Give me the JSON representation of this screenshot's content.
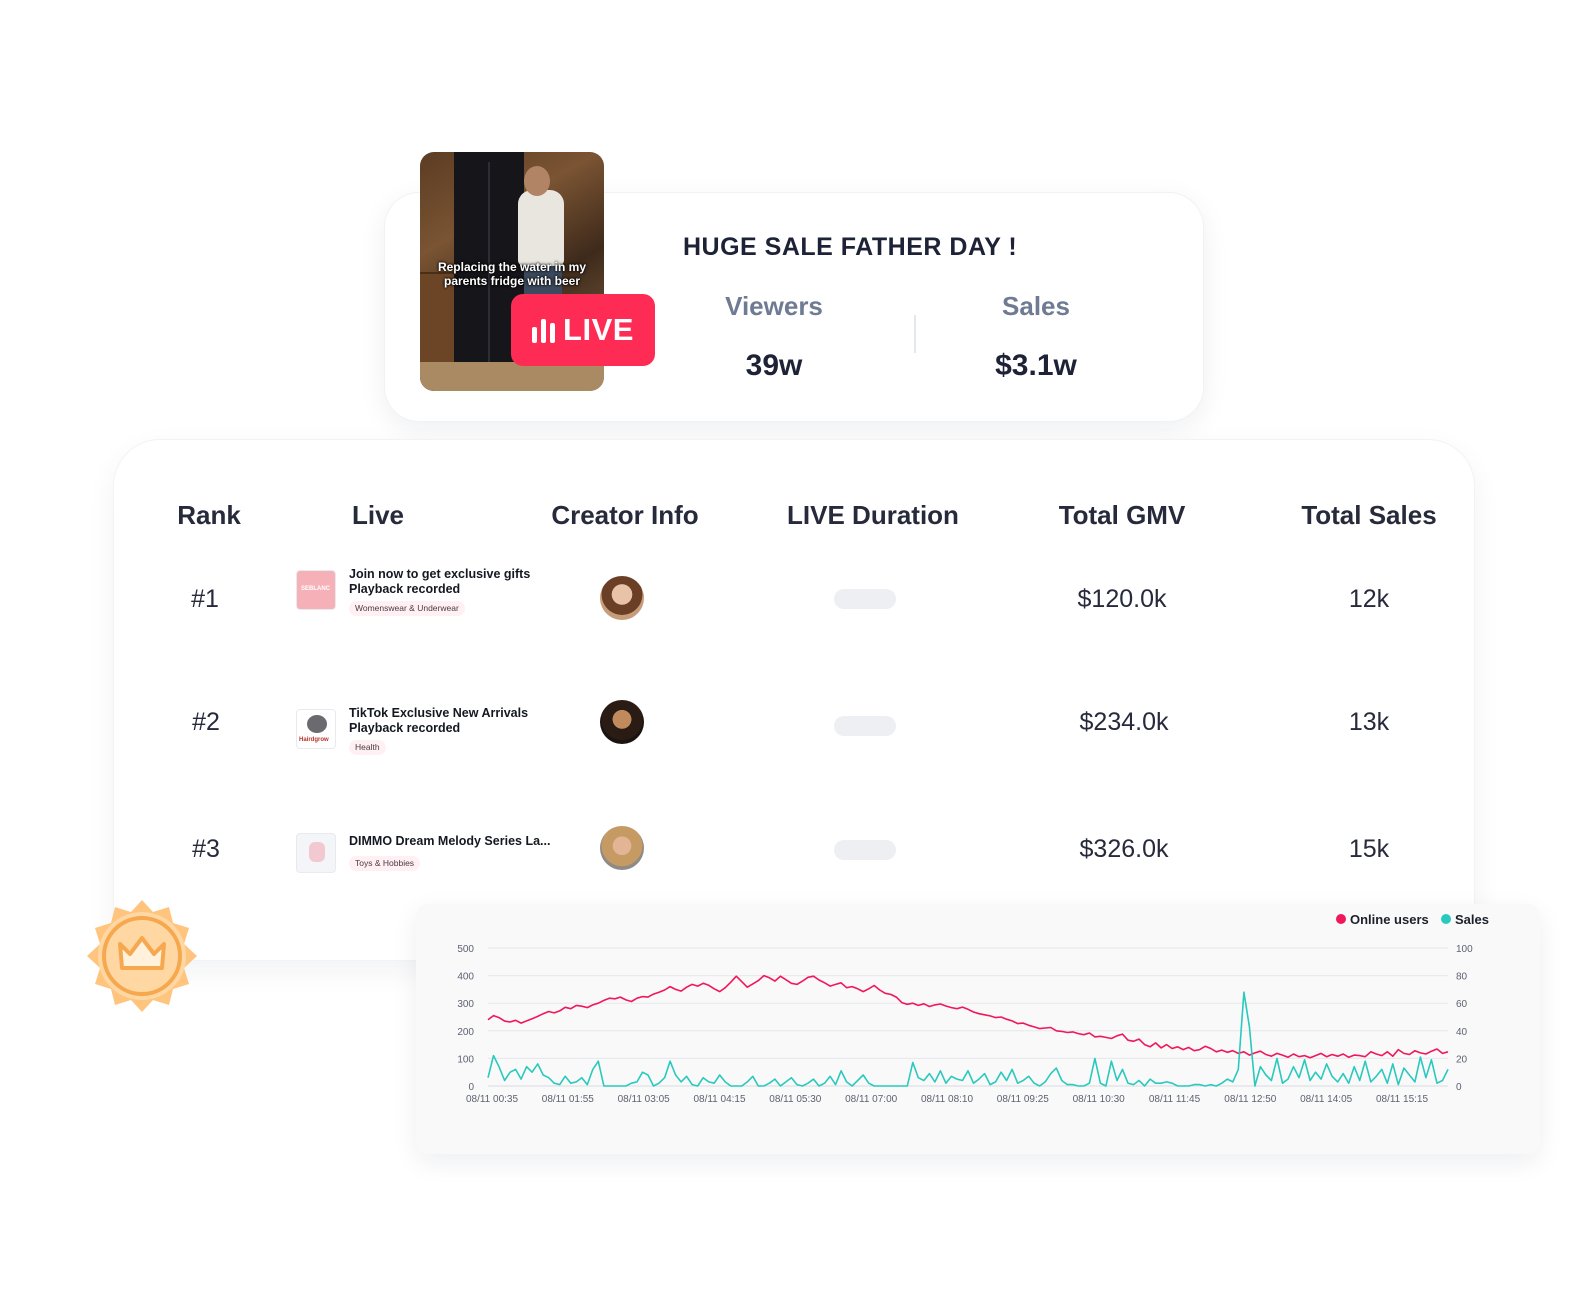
{
  "live_card": {
    "thumbnail_caption": "Replacing the water in my parents fridge with beer",
    "badge_label": "LIVE",
    "title": "HUGE SALE FATHER DAY !",
    "viewers_label": "Viewers",
    "viewers_value": "39w",
    "sales_label": "Sales",
    "sales_value": "$3.1w",
    "brand_color": "#fe2c55"
  },
  "table": {
    "headers": {
      "rank": "Rank",
      "live": "Live",
      "creator": "Creator Info",
      "duration": "LIVE Duration",
      "gmv": "Total GMV",
      "sales": "Total Sales"
    },
    "rows": [
      {
        "rank": "#1",
        "title_line1": "Join now to get exclusive gifts",
        "title_line2": "Playback recorded",
        "category": "Womenswear & Underwear",
        "thumb_text": "SEBLANC",
        "gmv": "$120.0k",
        "sales": "12k"
      },
      {
        "rank": "#2",
        "title_line1": "TikTok Exclusive New Arrivals",
        "title_line2": "Playback recorded",
        "category": "Health",
        "thumb_text": "Hairdgrow",
        "gmv": "$234.0k",
        "sales": "13k"
      },
      {
        "rank": "#3",
        "title_line1": "DIMMO Dream Melody Series La...",
        "title_line2": "",
        "category": "Toys & Hobbies",
        "thumb_text": "",
        "gmv": "$326.0k",
        "sales": "15k"
      }
    ]
  },
  "medal_icon": "crown-badge-icon",
  "chart_data": {
    "type": "line",
    "legend_position": "top-right",
    "grid": true,
    "x_tick_labels": [
      "08/11 00:35",
      "08/11 01:55",
      "08/11 03:05",
      "08/11 04:15",
      "08/11 05:30",
      "08/11 07:00",
      "08/11 08:10",
      "08/11 09:25",
      "08/11 10:30",
      "08/11 11:45",
      "08/11 12:50",
      "08/11 14:05",
      "08/11 15:15"
    ],
    "y_left": {
      "ticks": [
        0,
        100,
        200,
        300,
        400,
        500
      ],
      "range": [
        0,
        500
      ]
    },
    "y_right": {
      "ticks": [
        0,
        20,
        40,
        60,
        80,
        100
      ],
      "range": [
        0,
        100
      ]
    },
    "series": [
      {
        "name": "Online users",
        "axis": "left",
        "color": "#f0175a",
        "values": [
          240,
          255,
          248,
          235,
          232,
          238,
          228,
          236,
          244,
          252,
          262,
          270,
          265,
          272,
          285,
          280,
          292,
          289,
          284,
          294,
          300,
          310,
          318,
          316,
          322,
          312,
          306,
          318,
          324,
          322,
          333,
          340,
          348,
          360,
          350,
          344,
          358,
          368,
          362,
          372,
          365,
          352,
          342,
          356,
          376,
          398,
          378,
          358,
          370,
          382,
          400,
          392,
          380,
          398,
          385,
          372,
          368,
          380,
          394,
          398,
          384,
          374,
          362,
          368,
          374,
          356,
          360,
          352,
          342,
          352,
          364,
          348,
          336,
          332,
          322,
          302,
          296,
          300,
          292,
          298,
          288,
          294,
          297,
          290,
          284,
          280,
          286,
          278,
          268,
          262,
          258,
          254,
          248,
          250,
          242,
          236,
          226,
          228,
          220,
          214,
          208,
          210,
          212,
          200,
          198,
          194,
          196,
          190,
          186,
          192,
          178,
          180,
          176,
          172,
          182,
          188,
          166,
          162,
          170,
          150,
          142,
          156,
          138,
          150,
          136,
          142,
          132,
          140,
          128,
          132,
          144,
          136,
          124,
          130,
          122,
          128,
          118,
          124,
          112,
          120,
          126,
          114,
          108,
          118,
          112,
          104,
          116,
          106,
          110,
          102,
          110,
          118,
          106,
          114,
          108,
          116,
          104,
          112,
          110,
          106,
          124,
          116,
          110,
          124,
          108,
          132,
          118,
          114,
          128,
          120,
          116,
          126,
          134,
          118,
          124
        ]
      },
      {
        "name": "Sales",
        "axis": "right",
        "color": "#2ac9bd",
        "values": [
          6,
          22,
          14,
          4,
          10,
          12,
          5,
          14,
          10,
          16,
          8,
          6,
          2,
          1,
          7,
          2,
          3,
          6,
          1,
          12,
          18,
          0,
          0,
          0,
          0,
          0,
          2,
          3,
          10,
          8,
          0,
          2,
          6,
          18,
          8,
          3,
          7,
          1,
          0,
          6,
          3,
          2,
          8,
          3,
          0,
          0,
          0,
          3,
          7,
          0,
          0,
          2,
          5,
          0,
          3,
          6,
          1,
          0,
          2,
          5,
          0,
          2,
          7,
          1,
          11,
          3,
          0,
          4,
          8,
          2,
          0,
          0,
          0,
          0,
          0,
          0,
          0,
          17,
          6,
          4,
          9,
          3,
          11,
          2,
          7,
          5,
          4,
          11,
          2,
          5,
          9,
          1,
          3,
          10,
          4,
          12,
          2,
          4,
          7,
          2,
          0,
          3,
          9,
          13,
          4,
          1,
          1,
          0,
          0,
          2,
          20,
          2,
          0,
          18,
          4,
          12,
          2,
          1,
          4,
          0,
          5,
          2,
          2,
          3,
          2,
          0,
          0,
          0,
          1,
          1,
          0,
          1,
          0,
          2,
          5,
          3,
          12,
          68,
          43,
          0,
          14,
          8,
          4,
          20,
          2,
          5,
          14,
          6,
          19,
          4,
          10,
          5,
          16,
          7,
          3,
          9,
          2,
          14,
          4,
          18,
          3,
          7,
          12,
          2,
          16,
          1,
          13,
          8,
          3,
          21,
          6,
          19,
          2,
          4,
          12
        ]
      }
    ]
  }
}
